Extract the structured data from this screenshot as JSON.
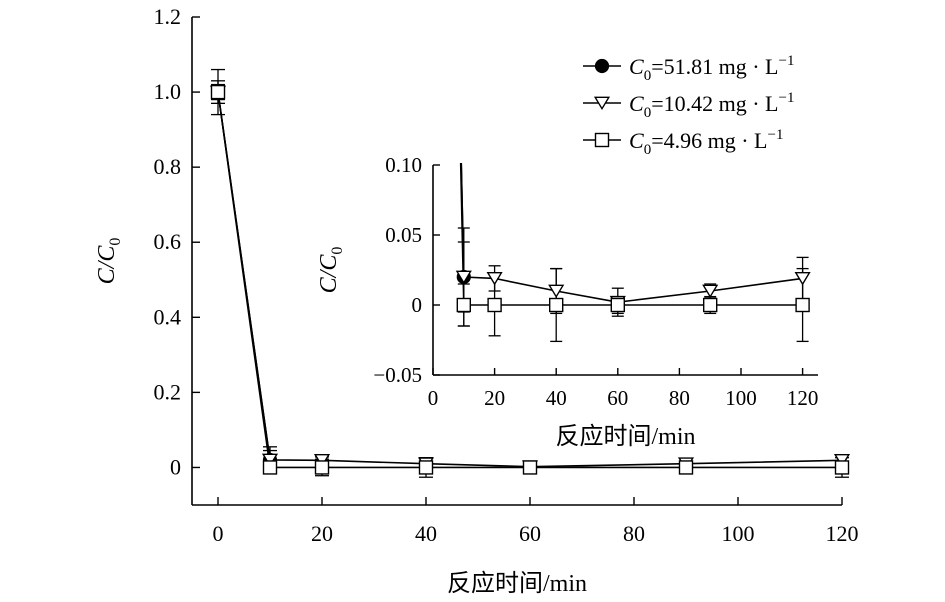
{
  "chart_data": [
    {
      "type": "line",
      "title": "",
      "xlabel": "反应时间/min",
      "ylabel": "C/C0",
      "ylabel_parts": {
        "main": "C/C",
        "sub": "0"
      },
      "xlim": [
        -5,
        120
      ],
      "ylim": [
        -0.1,
        1.2
      ],
      "x_ticks": [
        0,
        20,
        40,
        60,
        80,
        100,
        120
      ],
      "x_tick_labels": [
        "0",
        "20",
        "40",
        "60",
        "80",
        "100",
        "120"
      ],
      "y_ticks": [
        0,
        0.2,
        0.4,
        0.6,
        0.8,
        1.0,
        1.2
      ],
      "y_tick_labels": [
        "0",
        "0.2",
        "0.4",
        "0.6",
        "0.8",
        "1.0",
        "1.2"
      ],
      "grid": false,
      "legend_position": "top-right",
      "series": [
        {
          "name": "C0=51.81 mg · L−1",
          "legend": {
            "italic": "C",
            "sub": "0",
            "text": "=51.81 mg · L",
            "sup": "−1"
          },
          "marker": "circle-filled",
          "x": [
            0,
            10
          ],
          "y": [
            1.0,
            0.02
          ],
          "err": [
            0.03,
            0.035
          ]
        },
        {
          "name": "C0=10.42 mg · L−1",
          "legend": {
            "italic": "C",
            "sub": "0",
            "text": "=10.42 mg · L",
            "sup": "−1"
          },
          "marker": "triangle-down-open",
          "x": [
            0,
            10,
            20,
            40,
            60,
            90,
            120
          ],
          "y": [
            1.0,
            0.02,
            0.019,
            0.01,
            0.002,
            0.01,
            0.019
          ],
          "err": [
            0.06,
            0.025,
            0.009,
            0.016,
            0.01,
            0.005,
            0.015
          ]
        },
        {
          "name": "C0=4.96 mg · L−1",
          "legend": {
            "italic": "C",
            "sub": "0",
            "text": "=4.96 mg · L",
            "sup": "−1"
          },
          "marker": "square-open",
          "x": [
            0,
            10,
            20,
            40,
            60,
            90,
            120
          ],
          "y": [
            1.0,
            0.0,
            0.0,
            0.0,
            0.0,
            0.0,
            0.0
          ],
          "err": [
            0.02,
            0.015,
            0.022,
            0.026,
            0.006,
            0.006,
            0.026
          ]
        }
      ]
    },
    {
      "type": "line",
      "title": "",
      "xlabel": "反应时间/min",
      "ylabel": "C/C0",
      "ylabel_parts": {
        "main": "C/C",
        "sub": "0"
      },
      "xlim": [
        0,
        125
      ],
      "ylim": [
        -0.05,
        0.1
      ],
      "x_ticks": [
        0,
        20,
        40,
        60,
        80,
        100,
        120
      ],
      "x_tick_labels": [
        "0",
        "20",
        "40",
        "60",
        "80",
        "100",
        "120"
      ],
      "y_ticks": [
        -0.05,
        0,
        0.05,
        0.1
      ],
      "y_tick_labels": [
        "−0.05",
        "0",
        "0.05",
        "0.10"
      ],
      "grid": false,
      "inset": true
    }
  ]
}
